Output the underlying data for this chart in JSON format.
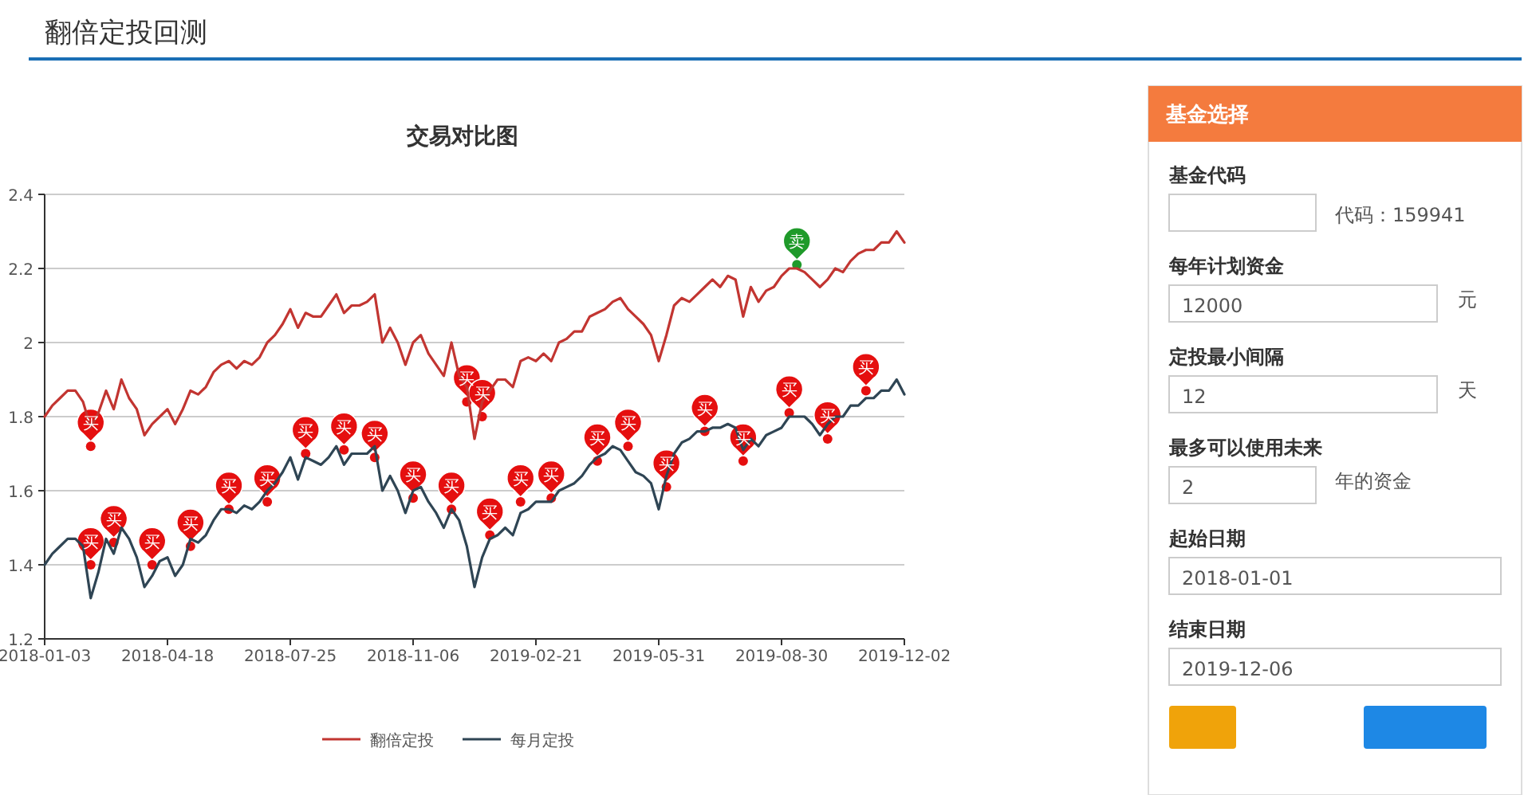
{
  "chart_data": [
    {
      "type": "line",
      "title": "交易对比图",
      "annotations": [
        "翻倍定投回测"
      ],
      "categories": [
        "2018-01-03",
        null,
        null,
        null,
        null,
        null,
        null,
        null,
        null,
        null,
        null,
        null,
        null,
        null,
        null,
        null,
        "2018-04-18",
        null,
        null,
        null,
        null,
        null,
        null,
        null,
        null,
        null,
        null,
        null,
        null,
        null,
        null,
        null,
        "2018-07-25",
        null,
        null,
        null,
        null,
        null,
        null,
        null,
        null,
        null,
        null,
        null,
        null,
        null,
        null,
        null,
        "2018-11-06",
        null,
        null,
        null,
        null,
        null,
        null,
        null,
        null,
        null,
        null,
        null,
        null,
        null,
        null,
        null,
        "2019-02-21",
        null,
        null,
        null,
        null,
        null,
        null,
        null,
        null,
        null,
        null,
        null,
        null,
        null,
        null,
        null,
        "2019-05-31",
        null,
        null,
        null,
        null,
        null,
        null,
        null,
        null,
        null,
        null,
        null,
        null,
        null,
        null,
        null,
        "2019-08-30",
        null,
        null,
        null,
        null,
        null,
        null,
        null,
        null,
        null,
        null,
        null,
        null,
        null,
        null,
        null,
        "2019-12-02"
      ],
      "ylim": [
        1.2,
        2.4
      ],
      "yticks": [
        1.2,
        1.4,
        1.6,
        1.8,
        2,
        2.2,
        2.4
      ],
      "grid": "y",
      "legend": "bottom",
      "line_style": "solid",
      "series": [
        {
          "name": "翻倍定投",
          "color": "#c23531",
          "values": [
            1.8,
            1.83,
            1.85,
            1.87,
            1.87,
            1.84,
            1.77,
            1.81,
            1.87,
            1.82,
            1.9,
            1.85,
            1.82,
            1.75,
            1.78,
            1.8,
            1.82,
            1.78,
            1.82,
            1.87,
            1.86,
            1.88,
            1.92,
            1.94,
            1.95,
            1.93,
            1.95,
            1.94,
            1.96,
            2.0,
            2.02,
            2.05,
            2.09,
            2.04,
            2.08,
            2.07,
            2.07,
            2.1,
            2.13,
            2.08,
            2.1,
            2.1,
            2.11,
            2.13,
            2.0,
            2.04,
            2.0,
            1.94,
            2.0,
            2.02,
            1.97,
            1.94,
            1.91,
            2.0,
            1.91,
            1.88,
            1.74,
            1.84,
            1.87,
            1.9,
            1.9,
            1.88,
            1.95,
            1.96,
            1.95,
            1.97,
            1.95,
            2.0,
            2.01,
            2.03,
            2.03,
            2.07,
            2.08,
            2.09,
            2.11,
            2.12,
            2.09,
            2.07,
            2.05,
            2.02,
            1.95,
            2.02,
            2.1,
            2.12,
            2.11,
            2.13,
            2.15,
            2.17,
            2.15,
            2.18,
            2.17,
            2.07,
            2.15,
            2.11,
            2.14,
            2.15,
            2.18,
            2.2,
            2.2,
            2.19,
            2.17,
            2.15,
            2.17,
            2.2,
            2.19,
            2.22,
            2.24,
            2.25,
            2.25,
            2.27,
            2.27,
            2.3,
            2.27
          ]
        },
        {
          "name": "每月定投",
          "color": "#2f4554",
          "values": [
            1.4,
            1.43,
            1.45,
            1.47,
            1.47,
            1.45,
            1.31,
            1.38,
            1.47,
            1.43,
            1.5,
            1.47,
            1.42,
            1.34,
            1.37,
            1.41,
            1.42,
            1.37,
            1.4,
            1.47,
            1.46,
            1.48,
            1.52,
            1.55,
            1.55,
            1.54,
            1.56,
            1.55,
            1.57,
            1.6,
            1.62,
            1.65,
            1.69,
            1.63,
            1.69,
            1.68,
            1.67,
            1.69,
            1.72,
            1.67,
            1.7,
            1.7,
            1.7,
            1.72,
            1.6,
            1.64,
            1.6,
            1.54,
            1.6,
            1.61,
            1.57,
            1.54,
            1.5,
            1.55,
            1.52,
            1.45,
            1.34,
            1.42,
            1.47,
            1.48,
            1.5,
            1.48,
            1.54,
            1.55,
            1.57,
            1.57,
            1.57,
            1.6,
            1.61,
            1.62,
            1.64,
            1.67,
            1.69,
            1.7,
            1.72,
            1.71,
            1.68,
            1.65,
            1.64,
            1.62,
            1.55,
            1.64,
            1.7,
            1.73,
            1.74,
            1.76,
            1.76,
            1.77,
            1.77,
            1.78,
            1.77,
            1.71,
            1.74,
            1.72,
            1.75,
            1.76,
            1.77,
            1.8,
            1.8,
            1.8,
            1.78,
            1.75,
            1.78,
            1.8,
            1.8,
            1.83,
            1.83,
            1.85,
            1.85,
            1.87,
            1.87,
            1.9,
            1.86
          ]
        },
        {
          "type": "scatter",
          "color": "#e50f0f",
          "values": [
            null,
            null,
            null,
            null,
            null,
            null,
            1.72,
            null,
            null,
            null,
            null,
            null,
            null,
            null,
            null,
            null,
            null,
            null,
            null,
            null,
            null,
            null,
            null,
            null,
            null,
            null,
            null,
            null,
            null,
            null,
            null,
            null,
            null,
            null,
            null,
            null,
            null,
            null,
            null,
            null,
            null,
            null,
            null,
            null,
            null,
            null,
            null,
            null,
            null,
            null,
            null,
            null,
            null,
            null,
            null,
            1.84,
            null,
            1.8,
            null,
            null,
            null,
            null,
            null,
            null,
            null,
            null,
            null,
            null,
            null,
            null,
            null,
            null,
            null,
            null,
            null,
            null,
            null,
            null,
            null,
            null,
            null,
            null,
            null,
            null,
            null,
            null,
            null,
            null,
            null,
            null,
            null,
            null,
            null,
            null,
            null,
            null,
            null,
            null,
            null,
            null,
            null,
            null,
            null,
            null,
            null,
            null,
            null,
            null,
            null,
            null,
            null,
            null,
            null
          ],
          "value_labels": [
            null,
            null,
            null,
            null,
            null,
            null,
            "买",
            null,
            null,
            null,
            null,
            null,
            null,
            null,
            null,
            null,
            null,
            null,
            null,
            null,
            null,
            null,
            null,
            null,
            null,
            null,
            null,
            null,
            null,
            null,
            null,
            null,
            null,
            null,
            null,
            null,
            null,
            null,
            null,
            null,
            null,
            null,
            null,
            null,
            null,
            null,
            null,
            null,
            null,
            null,
            null,
            null,
            null,
            null,
            null,
            "买",
            null,
            "买",
            null,
            null,
            null,
            null,
            null,
            null,
            null,
            null,
            null,
            null,
            null,
            null,
            null,
            null,
            null,
            null,
            null,
            null,
            null,
            null,
            null,
            null,
            null,
            null,
            null,
            null,
            null,
            null,
            null,
            null,
            null,
            null,
            null,
            null,
            null,
            null,
            null,
            null,
            null,
            null,
            null,
            null,
            null,
            null,
            null,
            null,
            null,
            null,
            null,
            null,
            null,
            null,
            null,
            null,
            null
          ]
        },
        {
          "type": "scatter",
          "color": "#e50f0f",
          "values": [
            null,
            null,
            null,
            null,
            null,
            null,
            1.4,
            null,
            null,
            1.46,
            null,
            null,
            null,
            null,
            1.4,
            null,
            null,
            null,
            null,
            1.45,
            null,
            null,
            null,
            null,
            1.55,
            null,
            null,
            null,
            null,
            1.57,
            null,
            null,
            null,
            null,
            1.7,
            null,
            null,
            null,
            null,
            1.71,
            null,
            null,
            null,
            1.69,
            null,
            null,
            null,
            null,
            1.58,
            null,
            null,
            null,
            null,
            1.55,
            null,
            null,
            null,
            null,
            1.48,
            null,
            null,
            null,
            1.57,
            null,
            null,
            null,
            1.58,
            null,
            null,
            null,
            null,
            null,
            1.68,
            null,
            null,
            null,
            1.72,
            null,
            null,
            null,
            null,
            1.61,
            null,
            null,
            null,
            null,
            1.76,
            null,
            null,
            null,
            null,
            1.68,
            null,
            null,
            null,
            null,
            null,
            1.81,
            null,
            null,
            null,
            null,
            1.74,
            null,
            null,
            null,
            null,
            1.87,
            null,
            null,
            null,
            null,
            null
          ],
          "value_labels": [
            null,
            null,
            null,
            null,
            null,
            null,
            "买",
            null,
            null,
            "买",
            null,
            null,
            null,
            null,
            "买",
            null,
            null,
            null,
            null,
            "买",
            null,
            null,
            null,
            null,
            "买",
            null,
            null,
            null,
            null,
            "买",
            null,
            null,
            null,
            null,
            "买",
            null,
            null,
            null,
            null,
            "买",
            null,
            null,
            null,
            "买",
            null,
            null,
            null,
            null,
            "买",
            null,
            null,
            null,
            null,
            "买",
            null,
            null,
            null,
            null,
            "买",
            null,
            null,
            null,
            "买",
            null,
            null,
            null,
            "买",
            null,
            null,
            null,
            null,
            null,
            "买",
            null,
            null,
            null,
            "买",
            null,
            null,
            null,
            null,
            "买",
            null,
            null,
            null,
            null,
            "买",
            null,
            null,
            null,
            null,
            "买",
            null,
            null,
            null,
            null,
            null,
            "买",
            null,
            null,
            null,
            null,
            "买",
            null,
            null,
            null,
            null,
            "买",
            null,
            null,
            null,
            null,
            null
          ]
        },
        {
          "type": "scatter",
          "color": "#1f9a2a",
          "values": [
            null,
            null,
            null,
            null,
            null,
            null,
            null,
            null,
            null,
            null,
            null,
            null,
            null,
            null,
            null,
            null,
            null,
            null,
            null,
            null,
            null,
            null,
            null,
            null,
            null,
            null,
            null,
            null,
            null,
            null,
            null,
            null,
            null,
            null,
            null,
            null,
            null,
            null,
            null,
            null,
            null,
            null,
            null,
            null,
            null,
            null,
            null,
            null,
            null,
            null,
            null,
            null,
            null,
            null,
            null,
            null,
            null,
            null,
            null,
            null,
            null,
            null,
            null,
            null,
            null,
            null,
            null,
            null,
            null,
            null,
            null,
            null,
            null,
            null,
            null,
            null,
            null,
            null,
            null,
            null,
            null,
            null,
            null,
            null,
            null,
            null,
            null,
            null,
            null,
            null,
            null,
            null,
            null,
            null,
            null,
            null,
            null,
            null,
            2.21,
            null,
            null,
            null,
            null,
            null,
            null,
            null,
            null,
            null,
            null,
            null,
            null,
            null,
            null
          ],
          "value_labels": [
            null,
            null,
            null,
            null,
            null,
            null,
            null,
            null,
            null,
            null,
            null,
            null,
            null,
            null,
            null,
            null,
            null,
            null,
            null,
            null,
            null,
            null,
            null,
            null,
            null,
            null,
            null,
            null,
            null,
            null,
            null,
            null,
            null,
            null,
            null,
            null,
            null,
            null,
            null,
            null,
            null,
            null,
            null,
            null,
            null,
            null,
            null,
            null,
            null,
            null,
            null,
            null,
            null,
            null,
            null,
            null,
            null,
            null,
            null,
            null,
            null,
            null,
            null,
            null,
            null,
            null,
            null,
            null,
            null,
            null,
            null,
            null,
            null,
            null,
            null,
            null,
            null,
            null,
            null,
            null,
            null,
            null,
            null,
            null,
            null,
            null,
            null,
            null,
            null,
            null,
            null,
            null,
            null,
            null,
            null,
            null,
            null,
            null,
            "卖",
            null,
            null,
            null,
            null,
            null,
            null,
            null,
            null,
            null,
            null,
            null,
            null,
            null,
            null
          ]
        }
      ]
    },
    {
      "type": "other",
      "title": "基金选择",
      "annotations": [
        "基金代码",
        "代码：159941",
        "每年计划资金",
        "12000",
        "元",
        "定投最小间隔",
        "12",
        "天",
        "最多可以使用未来",
        "2",
        "年的资金",
        "起始日期",
        "2018-01-01",
        "结束日期",
        "2019-12-06"
      ]
    }
  ]
}
